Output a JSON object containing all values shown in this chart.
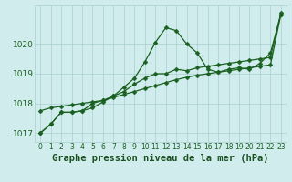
{
  "hours": [
    0,
    1,
    2,
    3,
    4,
    5,
    6,
    7,
    8,
    9,
    10,
    11,
    12,
    13,
    14,
    15,
    16,
    17,
    18,
    19,
    20,
    21,
    22,
    23
  ],
  "line_peak": [
    1017.0,
    1017.3,
    1017.7,
    1017.7,
    1017.75,
    1017.85,
    1018.05,
    1018.25,
    1018.55,
    1018.85,
    1019.4,
    1020.05,
    1020.55,
    1020.45,
    1020.0,
    1019.7,
    1019.15,
    1019.05,
    1019.15,
    1019.2,
    1019.15,
    1019.35,
    1019.7,
    1021.0
  ],
  "line_smooth": [
    1017.0,
    1017.3,
    1017.7,
    1017.7,
    1017.75,
    1018.0,
    1018.1,
    1018.25,
    1018.4,
    1018.65,
    1018.85,
    1019.0,
    1019.0,
    1019.15,
    1019.1,
    1019.2,
    1019.25,
    1019.3,
    1019.35,
    1019.4,
    1019.45,
    1019.5,
    1019.55,
    1021.05
  ],
  "line_linear1": [
    1017.75,
    1017.85,
    1017.9,
    1017.95,
    1018.0,
    1018.05,
    1018.1,
    1018.2,
    1018.3,
    1018.4,
    1018.5,
    1018.6,
    1018.7,
    1018.8,
    1018.88,
    1018.95,
    1019.0,
    1019.05,
    1019.1,
    1019.15,
    1019.2,
    1019.25,
    1019.3,
    1021.0
  ],
  "ylim": [
    1016.7,
    1021.3
  ],
  "yticks": [
    1017,
    1018,
    1019,
    1020
  ],
  "xtick_labels": [
    "0",
    "1",
    "2",
    "3",
    "4",
    "5",
    "6",
    "7",
    "8",
    "9",
    "10",
    "11",
    "12",
    "13",
    "14",
    "15",
    "16",
    "17",
    "18",
    "19",
    "20",
    "21",
    "22",
    "23"
  ],
  "bg_color": "#d0ecec",
  "grid_color": "#a8cece",
  "line_color": "#1a6020",
  "title": "Graphe pression niveau de la mer (hPa)",
  "title_color": "#1a5020",
  "title_fontsize": 7.5,
  "tick_fontsize": 5.5,
  "ytick_fontsize": 6.5,
  "marker_size": 2.5,
  "linewidth": 0.9
}
